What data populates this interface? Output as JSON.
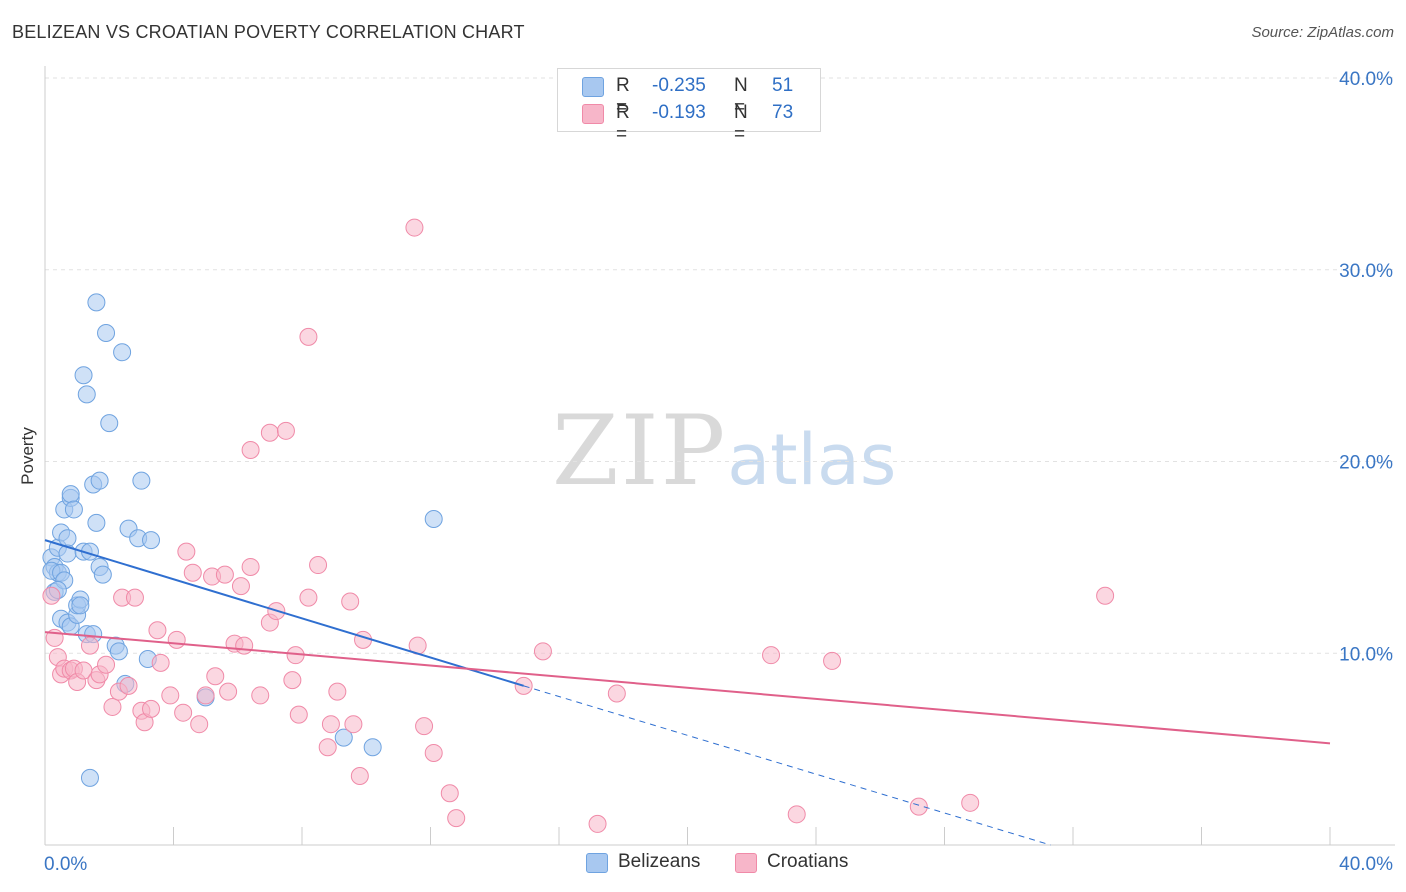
{
  "title": "BELIZEAN VS CROATIAN POVERTY CORRELATION CHART",
  "source": "Source: ZipAtlas.com",
  "watermark": {
    "zip": "ZIP",
    "atlas": "atlas"
  },
  "legend_top": [
    {
      "r_label": "R =",
      "r_value": "-0.235",
      "n_label": "N =",
      "n_value": "51",
      "color": "#a8c8f0"
    },
    {
      "r_label": "R =",
      "r_value": "-0.193",
      "n_label": "N =",
      "n_value": "73",
      "color": "#f7b6c9"
    }
  ],
  "legend_bottom": [
    {
      "label": "Belizeans",
      "color": "#a8c8f0"
    },
    {
      "label": "Croatians",
      "color": "#f7b6c9"
    }
  ],
  "chart_data": {
    "type": "scatter",
    "title": "BELIZEAN VS CROATIAN POVERTY CORRELATION CHART",
    "xlabel": "",
    "ylabel": "Poverty",
    "xlim": [
      0,
      40
    ],
    "ylim": [
      0,
      40
    ],
    "x_tick_labels": [
      "0.0%",
      "40.0%"
    ],
    "y_ticks": [
      10,
      20,
      30,
      40
    ],
    "y_tick_labels": [
      "10.0%",
      "20.0%",
      "30.0%",
      "40.0%"
    ],
    "grid": true,
    "series": [
      {
        "name": "Belizeans",
        "color": "#6fa3e0",
        "fill": "#a8c8f0",
        "trend": {
          "x": [
            0.0,
            14.9
          ],
          "y": [
            15.9,
            8.3
          ],
          "dashed_to": [
            31.3,
            0.0
          ],
          "color": "#2f6fd0"
        },
        "points": [
          [
            0.2,
            15.0
          ],
          [
            0.3,
            14.5
          ],
          [
            0.4,
            15.5
          ],
          [
            0.3,
            13.2
          ],
          [
            0.4,
            14.2
          ],
          [
            0.2,
            14.3
          ],
          [
            0.5,
            14.2
          ],
          [
            0.6,
            13.8
          ],
          [
            0.5,
            16.3
          ],
          [
            0.6,
            17.5
          ],
          [
            0.7,
            16.0
          ],
          [
            0.8,
            18.1
          ],
          [
            0.8,
            18.3
          ],
          [
            0.9,
            17.5
          ],
          [
            0.7,
            15.2
          ],
          [
            0.5,
            11.8
          ],
          [
            0.7,
            11.6
          ],
          [
            0.8,
            11.4
          ],
          [
            1.0,
            12.0
          ],
          [
            1.0,
            12.5
          ],
          [
            1.1,
            12.8
          ],
          [
            1.1,
            12.5
          ],
          [
            1.2,
            15.3
          ],
          [
            1.3,
            11.0
          ],
          [
            1.4,
            15.3
          ],
          [
            1.5,
            11.0
          ],
          [
            1.5,
            18.8
          ],
          [
            1.6,
            16.8
          ],
          [
            1.7,
            14.5
          ],
          [
            1.8,
            14.1
          ],
          [
            1.7,
            19.0
          ],
          [
            1.2,
            24.5
          ],
          [
            1.3,
            23.5
          ],
          [
            1.6,
            28.3
          ],
          [
            1.9,
            26.7
          ],
          [
            2.0,
            22.0
          ],
          [
            2.2,
            10.4
          ],
          [
            2.3,
            10.1
          ],
          [
            2.4,
            25.7
          ],
          [
            2.5,
            8.4
          ],
          [
            2.6,
            16.5
          ],
          [
            2.9,
            16.0
          ],
          [
            3.0,
            19.0
          ],
          [
            3.2,
            9.7
          ],
          [
            3.3,
            15.9
          ],
          [
            5.0,
            7.7
          ],
          [
            9.3,
            5.6
          ],
          [
            10.2,
            5.1
          ],
          [
            12.1,
            17.0
          ],
          [
            1.4,
            3.5
          ],
          [
            0.4,
            13.3
          ]
        ]
      },
      {
        "name": "Croatians",
        "color": "#f08aa8",
        "fill": "#f7b6c9",
        "trend": {
          "x": [
            0.0,
            40.0
          ],
          "y": [
            11.1,
            5.3
          ],
          "color": "#e0608a"
        },
        "points": [
          [
            0.2,
            13.0
          ],
          [
            0.3,
            10.8
          ],
          [
            0.4,
            9.8
          ],
          [
            0.5,
            8.9
          ],
          [
            0.6,
            9.2
          ],
          [
            0.8,
            9.1
          ],
          [
            0.9,
            9.2
          ],
          [
            1.0,
            8.5
          ],
          [
            1.2,
            9.1
          ],
          [
            1.4,
            10.4
          ],
          [
            1.6,
            8.6
          ],
          [
            1.7,
            8.9
          ],
          [
            1.9,
            9.4
          ],
          [
            2.1,
            7.2
          ],
          [
            2.3,
            8.0
          ],
          [
            2.4,
            12.9
          ],
          [
            2.6,
            8.3
          ],
          [
            2.8,
            12.9
          ],
          [
            3.0,
            7.0
          ],
          [
            3.1,
            6.4
          ],
          [
            3.3,
            7.1
          ],
          [
            3.5,
            11.2
          ],
          [
            3.6,
            9.5
          ],
          [
            3.9,
            7.8
          ],
          [
            4.1,
            10.7
          ],
          [
            4.3,
            6.9
          ],
          [
            4.4,
            15.3
          ],
          [
            4.6,
            14.2
          ],
          [
            4.8,
            6.3
          ],
          [
            5.0,
            7.8
          ],
          [
            5.2,
            14.0
          ],
          [
            5.3,
            8.8
          ],
          [
            5.6,
            14.1
          ],
          [
            5.7,
            8.0
          ],
          [
            5.9,
            10.5
          ],
          [
            6.1,
            13.5
          ],
          [
            6.2,
            10.4
          ],
          [
            6.4,
            14.5
          ],
          [
            6.7,
            7.8
          ],
          [
            7.0,
            11.6
          ],
          [
            7.2,
            12.2
          ],
          [
            7.0,
            21.5
          ],
          [
            6.4,
            20.6
          ],
          [
            7.5,
            21.6
          ],
          [
            7.7,
            8.6
          ],
          [
            7.8,
            9.9
          ],
          [
            7.9,
            6.8
          ],
          [
            8.2,
            12.9
          ],
          [
            8.2,
            26.5
          ],
          [
            8.5,
            14.6
          ],
          [
            8.8,
            5.1
          ],
          [
            8.9,
            6.3
          ],
          [
            9.1,
            8.0
          ],
          [
            9.5,
            12.7
          ],
          [
            9.6,
            6.3
          ],
          [
            9.8,
            3.6
          ],
          [
            9.9,
            10.7
          ],
          [
            11.6,
            10.4
          ],
          [
            11.8,
            6.2
          ],
          [
            12.1,
            4.8
          ],
          [
            12.6,
            2.7
          ],
          [
            12.8,
            1.4
          ],
          [
            11.5,
            32.2
          ],
          [
            14.9,
            8.3
          ],
          [
            15.5,
            10.1
          ],
          [
            17.2,
            1.1
          ],
          [
            17.8,
            7.9
          ],
          [
            22.6,
            9.9
          ],
          [
            23.4,
            1.6
          ],
          [
            24.5,
            9.6
          ],
          [
            27.2,
            2.0
          ],
          [
            28.8,
            2.2
          ],
          [
            33.0,
            13.0
          ]
        ]
      }
    ]
  }
}
